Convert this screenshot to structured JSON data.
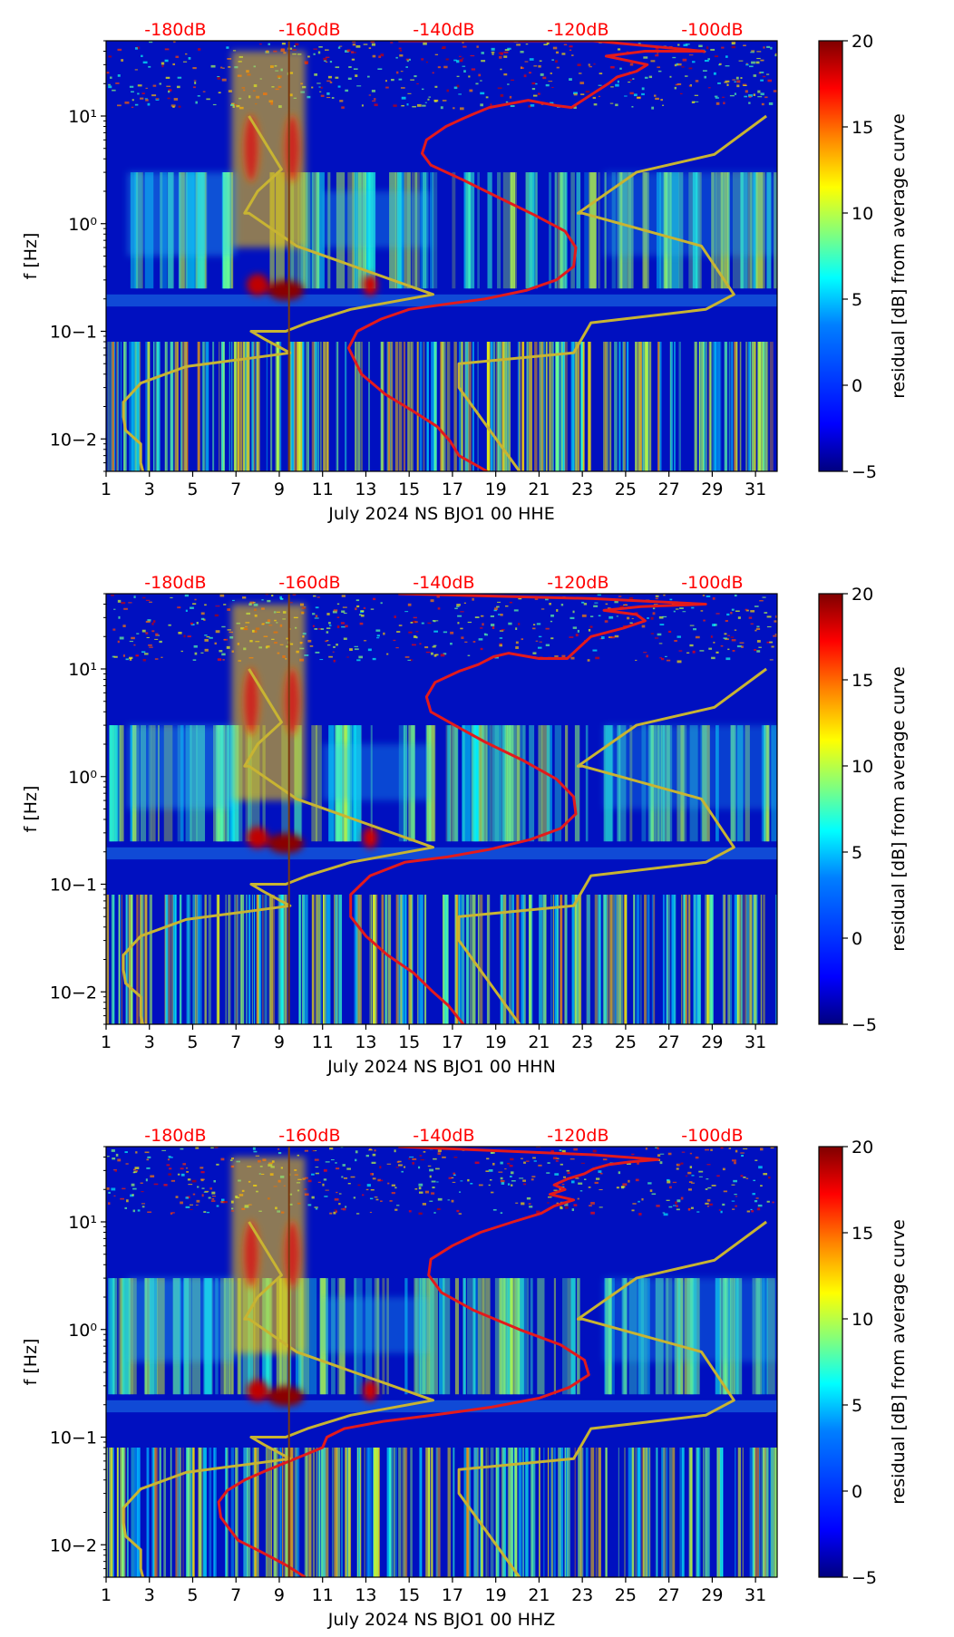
{
  "colors": {
    "accent_red": "#ff0000",
    "curve_red": "#e31a1c",
    "curve_olive": "#c8b432",
    "colormap": [
      "#00007f",
      "#0000ff",
      "#007fff",
      "#00ffff",
      "#7fff7f",
      "#ffff00",
      "#ff7f00",
      "#ff0000",
      "#7f0000"
    ]
  },
  "chart_data": [
    {
      "type": "heatmap",
      "title": "",
      "xlabel": "July 2024 NS BJO1 00 HHE",
      "ylabel": "f [Hz]",
      "xlim": [
        1,
        32
      ],
      "ylim": [
        0.005,
        50
      ],
      "yscale": "log",
      "x_ticks": [
        1,
        3,
        5,
        7,
        9,
        11,
        13,
        15,
        17,
        19,
        21,
        23,
        25,
        27,
        29,
        31
      ],
      "x_tick_labels": [
        "1",
        "3",
        "5",
        "7",
        "9",
        "11",
        "13",
        "15",
        "17",
        "19",
        "21",
        "23",
        "25",
        "27",
        "29",
        "31"
      ],
      "y_ticks": [
        0.01,
        0.1,
        1,
        10
      ],
      "y_tick_labels": [
        "10−2",
        "10−1",
        "10⁰",
        "10¹"
      ],
      "top_axis_labels": [
        "-180dB",
        "-160dB",
        "-140dB",
        "-120dB",
        "-100dB"
      ],
      "top_axis_positions": [
        4.2,
        10.4,
        16.6,
        22.8,
        29.0
      ],
      "colorbar": {
        "label": "residual [dB] from average curve",
        "range": [
          -5,
          20
        ],
        "ticks": [
          -5,
          0,
          5,
          10,
          15,
          20
        ]
      },
      "series": [
        {
          "name": "red noise curve",
          "x": [
            18.6,
            17.3,
            16.9,
            16.3,
            15.2,
            13.9,
            12.8,
            12.2,
            12.6,
            13.7,
            15.0,
            16.8,
            18.5,
            20.4,
            21.8,
            22.6,
            22.7,
            22.2,
            20.8,
            19.0,
            17.4,
            16.0,
            15.6,
            15.8,
            16.7,
            17.5,
            18.0,
            18.7,
            20.5,
            21.8,
            22.5,
            24.2,
            24.6,
            25.5,
            26.0,
            25.0,
            24.1,
            25.9,
            28.6,
            23.5,
            14.5
          ],
          "y": [
            0.005,
            0.007,
            0.0095,
            0.013,
            0.018,
            0.026,
            0.04,
            0.07,
            0.1,
            0.13,
            0.16,
            0.18,
            0.2,
            0.24,
            0.3,
            0.4,
            0.6,
            0.85,
            1.2,
            1.8,
            2.6,
            3.5,
            4.5,
            6.0,
            8.0,
            9.5,
            10.5,
            12.0,
            14.0,
            12.5,
            12.0,
            20.0,
            23.0,
            26.0,
            30.0,
            33.0,
            36.0,
            40.0,
            40.0,
            50.0,
            50.0
          ]
        },
        {
          "name": "olive model curve",
          "x": [
            2.7,
            2.6,
            2.6,
            1.9,
            1.8,
            1.8,
            2.6,
            4.7,
            7.3,
            9.5,
            8.3,
            7.7,
            9.3,
            10.3,
            12.3,
            16.1,
            9.8,
            7.6,
            7.4,
            8.0,
            9.1,
            7.6
          ],
          "y": [
            0.005,
            0.006,
            0.009,
            0.012,
            0.016,
            0.022,
            0.033,
            0.047,
            0.055,
            0.063,
            0.085,
            0.1,
            0.1,
            0.12,
            0.16,
            0.22,
            0.62,
            1.25,
            1.25,
            2.0,
            3.2,
            10.0
          ]
        },
        {
          "name": "olive model curve right",
          "x": [
            20.1,
            17.3,
            17.3,
            22.6,
            23.4,
            28.7,
            30.0,
            28.5,
            23.0,
            22.8,
            25.5,
            29.1,
            31.5
          ],
          "y": [
            0.005,
            0.03,
            0.05,
            0.063,
            0.12,
            0.16,
            0.22,
            0.62,
            1.25,
            1.25,
            3.0,
            4.4,
            10.0
          ]
        },
        {
          "name": "vertical line",
          "x": [
            9.45,
            9.45
          ],
          "y": [
            0.005,
            50
          ]
        }
      ]
    },
    {
      "type": "heatmap",
      "title": "",
      "xlabel": "July 2024 NS BJO1 00 HHN",
      "ylabel": "f [Hz]",
      "xlim": [
        1,
        32
      ],
      "ylim": [
        0.005,
        50
      ],
      "yscale": "log",
      "x_ticks": [
        1,
        3,
        5,
        7,
        9,
        11,
        13,
        15,
        17,
        19,
        21,
        23,
        25,
        27,
        29,
        31
      ],
      "x_tick_labels": [
        "1",
        "3",
        "5",
        "7",
        "9",
        "11",
        "13",
        "15",
        "17",
        "19",
        "21",
        "23",
        "25",
        "27",
        "29",
        "31"
      ],
      "y_ticks": [
        0.01,
        0.1,
        1,
        10
      ],
      "y_tick_labels": [
        "10−2",
        "10−1",
        "10⁰",
        "10¹"
      ],
      "top_axis_labels": [
        "-180dB",
        "-160dB",
        "-140dB",
        "-120dB",
        "-100dB"
      ],
      "top_axis_positions": [
        4.2,
        10.4,
        16.6,
        22.8,
        29.0
      ],
      "colorbar": {
        "label": "residual [dB] from average curve",
        "range": [
          -5,
          20
        ],
        "ticks": [
          -5,
          0,
          5,
          10,
          15,
          20
        ]
      },
      "series": [
        {
          "name": "red noise curve",
          "x": [
            17.5,
            16.8,
            16.1,
            15.2,
            14.0,
            13.0,
            12.3,
            12.3,
            13.2,
            14.8,
            16.8,
            18.7,
            20.6,
            22.0,
            22.7,
            22.6,
            21.8,
            20.3,
            18.5,
            17.1,
            16.0,
            15.8,
            16.2,
            17.3,
            18.2,
            18.9,
            19.6,
            21.0,
            22.3,
            23.4,
            24.9,
            25.9,
            25.5,
            24.0,
            25.7,
            28.7,
            23.5,
            14.5
          ],
          "y": [
            0.005,
            0.0075,
            0.01,
            0.015,
            0.022,
            0.033,
            0.05,
            0.08,
            0.12,
            0.16,
            0.18,
            0.21,
            0.26,
            0.33,
            0.45,
            0.65,
            0.95,
            1.4,
            2.1,
            3.0,
            4.0,
            5.5,
            7.5,
            9.5,
            11.0,
            13.0,
            14.0,
            12.5,
            12.5,
            20.0,
            24.0,
            28.0,
            32.0,
            35.0,
            38.0,
            40.0,
            45.0,
            50.0
          ]
        },
        {
          "name": "olive model curve",
          "x": [
            2.7,
            2.6,
            2.6,
            1.9,
            1.8,
            1.8,
            2.6,
            4.7,
            7.3,
            9.5,
            8.3,
            7.7,
            9.3,
            10.3,
            12.3,
            16.1,
            9.8,
            7.6,
            7.4,
            8.0,
            9.1,
            7.6
          ],
          "y": [
            0.005,
            0.006,
            0.009,
            0.012,
            0.016,
            0.022,
            0.033,
            0.047,
            0.055,
            0.063,
            0.085,
            0.1,
            0.1,
            0.12,
            0.16,
            0.22,
            0.62,
            1.25,
            1.25,
            2.0,
            3.2,
            10.0
          ]
        },
        {
          "name": "olive model curve right",
          "x": [
            20.1,
            17.3,
            17.3,
            22.6,
            23.4,
            28.7,
            30.0,
            28.5,
            23.0,
            22.8,
            25.5,
            29.1,
            31.5
          ],
          "y": [
            0.005,
            0.03,
            0.05,
            0.063,
            0.12,
            0.16,
            0.22,
            0.62,
            1.25,
            1.25,
            3.0,
            4.4,
            10.0
          ]
        },
        {
          "name": "vertical line",
          "x": [
            9.45,
            9.45
          ],
          "y": [
            0.005,
            50
          ]
        }
      ]
    },
    {
      "type": "heatmap",
      "title": "",
      "xlabel": "July 2024 NS BJO1 00 HHZ",
      "ylabel": "f [Hz]",
      "xlim": [
        1,
        32
      ],
      "ylim": [
        0.005,
        50
      ],
      "yscale": "log",
      "x_ticks": [
        1,
        3,
        5,
        7,
        9,
        11,
        13,
        15,
        17,
        19,
        21,
        23,
        25,
        27,
        29,
        31
      ],
      "x_tick_labels": [
        "1",
        "3",
        "5",
        "7",
        "9",
        "11",
        "13",
        "15",
        "17",
        "19",
        "21",
        "23",
        "25",
        "27",
        "29",
        "31"
      ],
      "y_ticks": [
        0.01,
        0.1,
        1,
        10
      ],
      "y_tick_labels": [
        "10−2",
        "10−1",
        "10⁰",
        "10¹"
      ],
      "top_axis_labels": [
        "-180dB",
        "-160dB",
        "-140dB",
        "-120dB",
        "-100dB"
      ],
      "top_axis_positions": [
        4.2,
        10.4,
        16.6,
        22.8,
        29.0
      ],
      "colorbar": {
        "label": "residual [dB] from average curve",
        "range": [
          -5,
          20
        ],
        "ticks": [
          -5,
          0,
          5,
          10,
          15,
          20
        ]
      },
      "series": [
        {
          "name": "red noise curve",
          "x": [
            10.2,
            9.3,
            8.2,
            7.1,
            6.7,
            6.3,
            6.2,
            6.6,
            7.4,
            8.3,
            9.3,
            10.3,
            11.0,
            11.2,
            12.0,
            13.8,
            16.1,
            18.8,
            21.0,
            22.4,
            23.3,
            23.1,
            22.0,
            20.1,
            18.0,
            16.5,
            15.9,
            16.0,
            17.0,
            18.3,
            19.8,
            21.1,
            21.7,
            22.6,
            21.5,
            22.2,
            21.7,
            22.3,
            23.1,
            23.5,
            24.2,
            25.2,
            26.5,
            23.5,
            14.5
          ],
          "y": [
            0.005,
            0.0065,
            0.0085,
            0.011,
            0.014,
            0.018,
            0.025,
            0.032,
            0.04,
            0.048,
            0.058,
            0.07,
            0.08,
            0.1,
            0.12,
            0.14,
            0.16,
            0.19,
            0.23,
            0.29,
            0.38,
            0.52,
            0.72,
            1.0,
            1.5,
            2.2,
            3.2,
            4.5,
            6.0,
            8.0,
            10.0,
            12.0,
            14.0,
            16.0,
            18.0,
            20.0,
            22.0,
            25.0,
            28.0,
            31.0,
            34.0,
            36.0,
            38.0,
            42.0,
            50.0
          ]
        },
        {
          "name": "olive model curve",
          "x": [
            2.7,
            2.6,
            2.6,
            1.9,
            1.8,
            1.8,
            2.6,
            4.7,
            7.3,
            9.5,
            8.3,
            7.7,
            9.3,
            10.3,
            12.3,
            16.1,
            9.8,
            7.6,
            7.4,
            8.0,
            9.1,
            7.6
          ],
          "y": [
            0.005,
            0.006,
            0.009,
            0.012,
            0.016,
            0.022,
            0.033,
            0.047,
            0.055,
            0.063,
            0.085,
            0.1,
            0.1,
            0.12,
            0.16,
            0.22,
            0.62,
            1.25,
            1.25,
            2.0,
            3.2,
            10.0
          ]
        },
        {
          "name": "olive model curve right",
          "x": [
            20.1,
            17.3,
            17.3,
            22.6,
            23.4,
            28.7,
            30.0,
            28.5,
            23.0,
            22.8,
            25.5,
            29.1,
            31.5
          ],
          "y": [
            0.005,
            0.03,
            0.05,
            0.063,
            0.12,
            0.16,
            0.22,
            0.62,
            1.25,
            1.25,
            3.0,
            4.4,
            10.0
          ]
        },
        {
          "name": "vertical line",
          "x": [
            9.45,
            9.45
          ],
          "y": [
            0.005,
            50
          ]
        }
      ]
    }
  ]
}
